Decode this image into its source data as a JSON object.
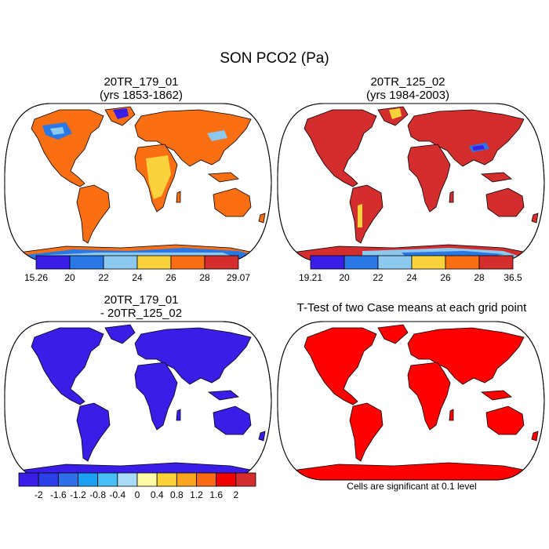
{
  "figure": {
    "title": "SON PCO2 (Pa)",
    "note": "Cells are significant at 0.1 level"
  },
  "colors": {
    "land_outline": "#000000",
    "ocean": "#ffffff",
    "diff_fill": "#3a1ee8",
    "ttest_fill": "#ff0000",
    "case2_dominant": "#d42d2d"
  },
  "panels": [
    {
      "title_line1": "20TR_179_01",
      "title_line2": "(yrs 1853-1862)",
      "colorbar": {
        "colors": [
          "#3a1ee8",
          "#2a78e6",
          "#8dc8ee",
          "#fad23c",
          "#fa6e14",
          "#d42d2d"
        ],
        "labels": [
          "15.26",
          "20",
          "22",
          "24",
          "26",
          "28",
          "29.07"
        ]
      }
    },
    {
      "title_line1": "20TR_125_02",
      "title_line2": "(yrs 1984-2003)",
      "colorbar": {
        "colors": [
          "#3a1ee8",
          "#2a78e6",
          "#8dc8ee",
          "#fad23c",
          "#fa6e14",
          "#d42d2d"
        ],
        "labels": [
          "19.21",
          "20",
          "22",
          "24",
          "26",
          "28",
          "36.5"
        ]
      }
    },
    {
      "title_line1": "20TR_179_01",
      "title_line2": "- 20TR_125_02",
      "colorbar": {
        "colors": [
          "#3a1ee8",
          "#2b3fe8",
          "#2f6fea",
          "#1b9ff0",
          "#46c0f4",
          "#a9dcf4",
          "#fffca8",
          "#fcd23a",
          "#fba51e",
          "#fb6a14",
          "#ee0000",
          "#d42d2d"
        ],
        "labels": [
          "-2",
          "-1.6",
          "-1.2",
          "-0.8",
          "-0.4",
          "0",
          "0.4",
          "0.8",
          "1.2",
          "1.6",
          "2"
        ]
      }
    },
    {
      "title_line1": "T-Test of two Case means at each grid point"
    }
  ]
}
